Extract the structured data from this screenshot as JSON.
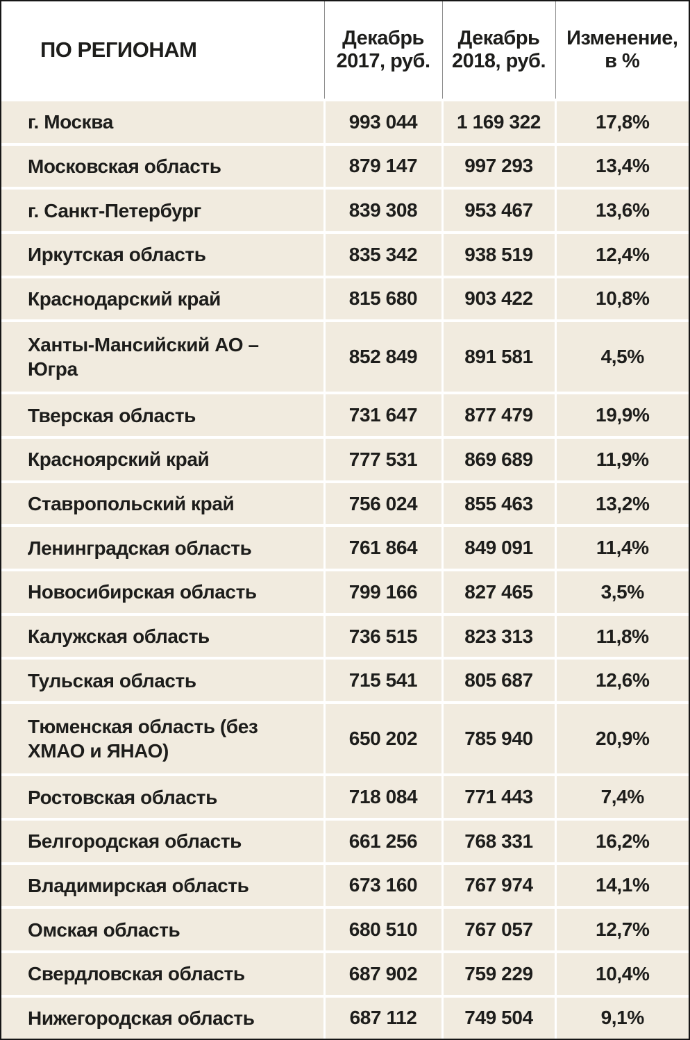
{
  "colors": {
    "row_background": "#f1ebdf",
    "header_background": "#ffffff",
    "text": "#1d1d1b",
    "frame_border": "#161616",
    "grid_line": "#8d8d8d"
  },
  "table": {
    "headers": {
      "region": "ПО РЕГИОНАМ",
      "dec2017": "Декабрь 2017, руб.",
      "dec2018": "Декабрь 2018, руб.",
      "change": "Изменение, в %"
    },
    "rows": [
      {
        "region": "г. Москва",
        "dec2017": "993 044",
        "dec2018": "1 169 322",
        "change": "17,8%"
      },
      {
        "region": "Московская область",
        "dec2017": "879 147",
        "dec2018": "997 293",
        "change": "13,4%"
      },
      {
        "region": "г. Санкт-Петербург",
        "dec2017": "839 308",
        "dec2018": "953 467",
        "change": "13,6%"
      },
      {
        "region": "Иркутская область",
        "dec2017": "835 342",
        "dec2018": "938 519",
        "change": "12,4%"
      },
      {
        "region": "Краснодарский край",
        "dec2017": "815 680",
        "dec2018": "903 422",
        "change": "10,8%"
      },
      {
        "region": "Ханты-Мансийский АО – Югра",
        "dec2017": "852 849",
        "dec2018": "891 581",
        "change": "4,5%"
      },
      {
        "region": "Тверская область",
        "dec2017": "731 647",
        "dec2018": "877 479",
        "change": "19,9%"
      },
      {
        "region": "Красноярский край",
        "dec2017": "777 531",
        "dec2018": "869 689",
        "change": "11,9%"
      },
      {
        "region": "Ставропольский край",
        "dec2017": "756 024",
        "dec2018": "855 463",
        "change": "13,2%"
      },
      {
        "region": "Ленинградская область",
        "dec2017": "761 864",
        "dec2018": "849 091",
        "change": "11,4%"
      },
      {
        "region": "Новосибирская область",
        "dec2017": "799 166",
        "dec2018": "827 465",
        "change": "3,5%"
      },
      {
        "region": "Калужская область",
        "dec2017": "736 515",
        "dec2018": "823 313",
        "change": "11,8%"
      },
      {
        "region": "Тульская область",
        "dec2017": "715 541",
        "dec2018": "805 687",
        "change": "12,6%"
      },
      {
        "region": "Тюменская область (без ХМАО и ЯНАО)",
        "dec2017": "650 202",
        "dec2018": "785 940",
        "change": "20,9%"
      },
      {
        "region": "Ростовская область",
        "dec2017": "718 084",
        "dec2018": "771 443",
        "change": "7,4%"
      },
      {
        "region": "Белгородская область",
        "dec2017": "661 256",
        "dec2018": "768 331",
        "change": "16,2%"
      },
      {
        "region": "Владимирская область",
        "dec2017": "673 160",
        "dec2018": "767 974",
        "change": "14,1%"
      },
      {
        "region": "Омская область",
        "dec2017": "680 510",
        "dec2018": "767 057",
        "change": "12,7%"
      },
      {
        "region": "Свердловская область",
        "dec2017": "687 902",
        "dec2018": "759 229",
        "change": "10,4%"
      },
      {
        "region": "Нижегородская область",
        "dec2017": "687 112",
        "dec2018": "749 504",
        "change": "9,1%"
      }
    ]
  },
  "chart_data": {
    "type": "table",
    "title": "ПО РЕГИОНАМ",
    "columns": [
      "Регион",
      "Декабрь 2017, руб.",
      "Декабрь 2018, руб.",
      "Изменение, в %"
    ],
    "rows": [
      [
        "г. Москва",
        993044,
        1169322,
        17.8
      ],
      [
        "Московская область",
        879147,
        997293,
        13.4
      ],
      [
        "г. Санкт-Петербург",
        839308,
        953467,
        13.6
      ],
      [
        "Иркутская область",
        835342,
        938519,
        12.4
      ],
      [
        "Краснодарский край",
        815680,
        903422,
        10.8
      ],
      [
        "Ханты-Мансийский АО – Югра",
        852849,
        891581,
        4.5
      ],
      [
        "Тверская область",
        731647,
        877479,
        19.9
      ],
      [
        "Красноярский край",
        777531,
        869689,
        11.9
      ],
      [
        "Ставропольский край",
        756024,
        855463,
        13.2
      ],
      [
        "Ленинградская область",
        761864,
        849091,
        11.4
      ],
      [
        "Новосибирская область",
        799166,
        827465,
        3.5
      ],
      [
        "Калужская область",
        736515,
        823313,
        11.8
      ],
      [
        "Тульская область",
        715541,
        805687,
        12.6
      ],
      [
        "Тюменская область (без ХМАО и ЯНАО)",
        650202,
        785940,
        20.9
      ],
      [
        "Ростовская область",
        718084,
        771443,
        7.4
      ],
      [
        "Белгородская область",
        661256,
        768331,
        16.2
      ],
      [
        "Владимирская область",
        673160,
        767974,
        14.1
      ],
      [
        "Омская область",
        680510,
        767057,
        12.7
      ],
      [
        "Свердловская область",
        687902,
        759229,
        10.4
      ],
      [
        "Нижегородская область",
        687112,
        749504,
        9.1
      ]
    ]
  }
}
